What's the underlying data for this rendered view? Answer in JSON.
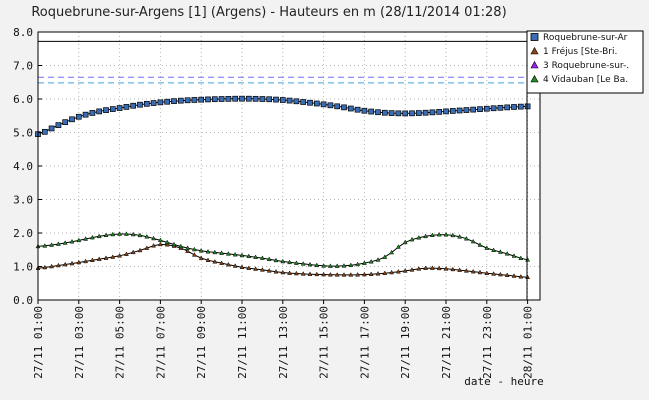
{
  "chart_data": {
    "type": "line",
    "title": "Roquebrune-sur-Argens [1] (Argens) - Hauteurs en m (28/11/2014 01:28)",
    "xlabel": "date - heure",
    "ylabel": "",
    "ylim": [
      0,
      8
    ],
    "yticks": [
      "0.0",
      "1.0",
      "2.0",
      "3.0",
      "4.0",
      "5.0",
      "6.0",
      "7.0",
      "8.0"
    ],
    "xlim": [
      0,
      24.5
    ],
    "xtick_positions": [
      0,
      2,
      4,
      6,
      8,
      10,
      12,
      14,
      16,
      18,
      20,
      22,
      24
    ],
    "xtick_labels": [
      "27/11 01:00",
      "27/11 03:00",
      "27/11 05:00",
      "27/11 07:00",
      "27/11 09:00",
      "27/11 11:00",
      "27/11 13:00",
      "27/11 15:00",
      "27/11 17:00",
      "27/11 19:00",
      "27/11 21:00",
      "27/11 23:00",
      "28/11 01:00"
    ],
    "x_unit": "hours since 27/11 01:00",
    "grid": true,
    "reference_lines": [
      {
        "value": 7.72,
        "color": "#000000",
        "style": "solid"
      },
      {
        "value": 6.65,
        "color": "#7070ff",
        "style": "dashed"
      },
      {
        "value": 6.48,
        "color": "#40a0e0",
        "style": "dashed"
      }
    ],
    "series": [
      {
        "name": "Roquebrune-sur-Ar",
        "color": "#3a6db5",
        "marker": "square",
        "x": [
          0,
          1,
          2,
          3,
          4,
          5,
          6,
          7,
          8,
          9,
          10,
          11,
          12,
          13,
          14,
          15,
          16,
          17,
          18,
          19,
          20,
          21,
          22,
          23,
          24
        ],
        "values": [
          4.95,
          5.22,
          5.47,
          5.63,
          5.73,
          5.83,
          5.9,
          5.95,
          5.98,
          6.0,
          6.01,
          6.0,
          5.97,
          5.91,
          5.84,
          5.75,
          5.65,
          5.59,
          5.57,
          5.59,
          5.63,
          5.67,
          5.71,
          5.75,
          5.78
        ]
      },
      {
        "name": "1 Fréjus [Ste-Bri.",
        "color": "#8b4513",
        "marker": "triangle",
        "x": [
          0,
          1,
          2,
          3,
          4,
          5,
          6,
          7,
          8,
          9,
          10,
          11,
          12,
          13,
          14,
          15,
          16,
          17,
          18,
          19,
          20,
          21,
          22,
          23,
          24
        ],
        "values": [
          0.95,
          1.03,
          1.12,
          1.22,
          1.32,
          1.48,
          1.66,
          1.55,
          1.25,
          1.1,
          0.98,
          0.9,
          0.82,
          0.78,
          0.76,
          0.75,
          0.76,
          0.8,
          0.87,
          0.95,
          0.93,
          0.87,
          0.8,
          0.74,
          0.68
        ]
      },
      {
        "name": "3 Roquebrune-sur-.",
        "color": "#a020f0",
        "marker": "triangle",
        "x": [],
        "values": []
      },
      {
        "name": "4 Vidauban [Le Ba.",
        "color": "#228b22",
        "marker": "triangle",
        "x": [
          0,
          1,
          2,
          3,
          4,
          5,
          6,
          7,
          8,
          9,
          10,
          11,
          12,
          13,
          14,
          15,
          16,
          17,
          18,
          19,
          20,
          21,
          22,
          23,
          24
        ],
        "values": [
          1.6,
          1.67,
          1.78,
          1.9,
          1.97,
          1.93,
          1.78,
          1.6,
          1.47,
          1.4,
          1.33,
          1.25,
          1.15,
          1.08,
          1.02,
          1.02,
          1.1,
          1.28,
          1.72,
          1.9,
          1.95,
          1.83,
          1.55,
          1.38,
          1.2
        ]
      }
    ]
  }
}
